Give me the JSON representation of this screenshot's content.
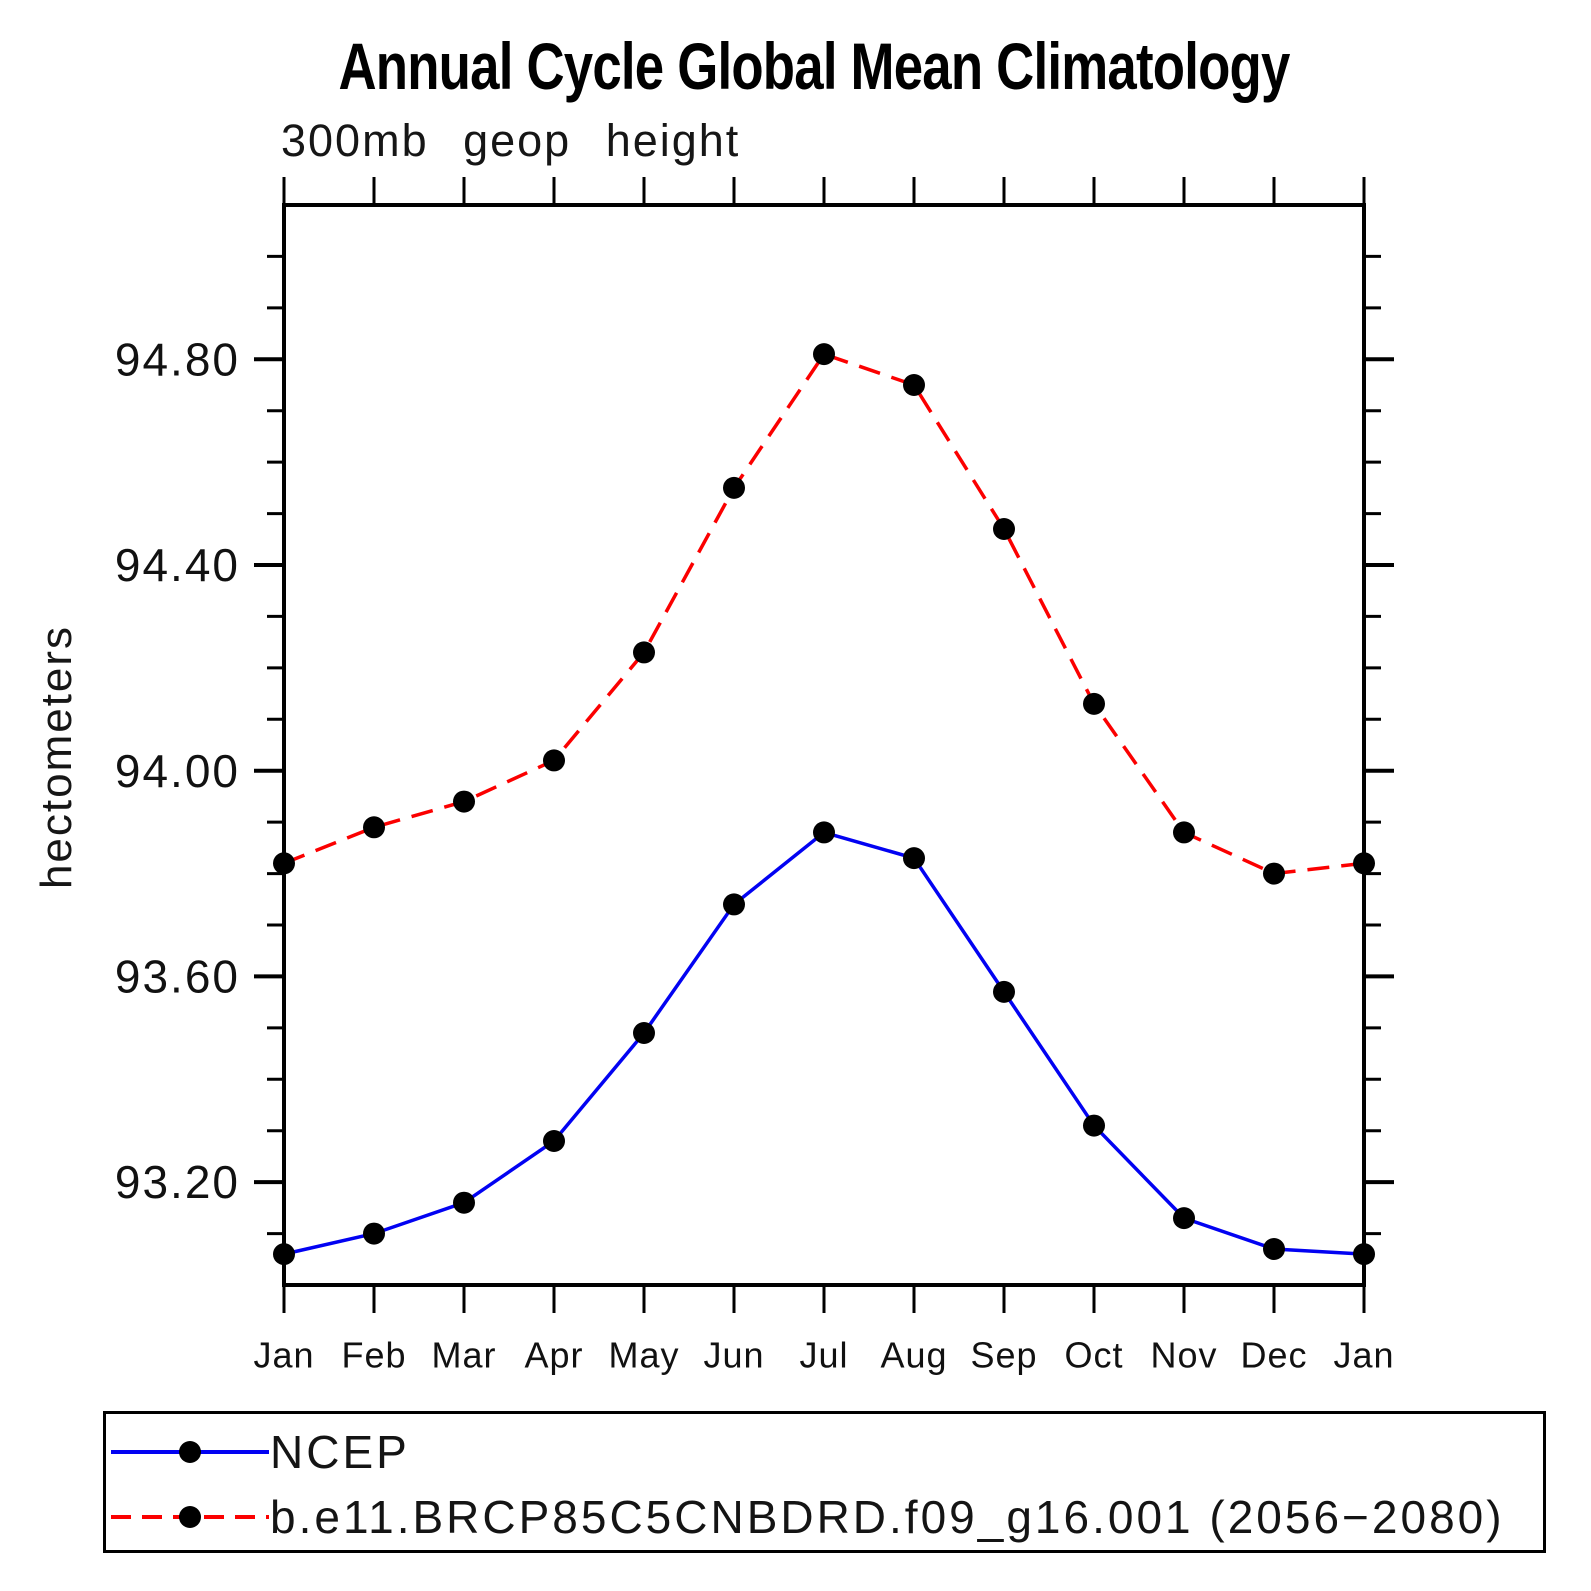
{
  "page": {
    "background": "#ffffff"
  },
  "header": {
    "title": "Annual Cycle Global Mean Climatology",
    "subtitle": "300mb geop height"
  },
  "chart_data": {
    "type": "line",
    "title": "Annual Cycle Global Mean Climatology",
    "subtitle": "300mb geop height",
    "xlabel": "",
    "ylabel": "hectometers",
    "x_categories": [
      "Jan",
      "Feb",
      "Mar",
      "Apr",
      "May",
      "Jun",
      "Jul",
      "Aug",
      "Sep",
      "Oct",
      "Nov",
      "Dec",
      "Jan"
    ],
    "ylim": [
      93.0,
      95.1
    ],
    "y_major_ticks": [
      93.2,
      93.6,
      94.0,
      94.4,
      94.8
    ],
    "y_major_tick_labels": [
      "93.20",
      "93.60",
      "94.00",
      "94.40",
      "94.80"
    ],
    "y_minor_tick_step": 0.1,
    "grid": false,
    "axis_color": "#000000",
    "marker_color": "#000000",
    "legend_position": "bottom-left-box",
    "series": [
      {
        "name": "NCEP",
        "color": "#0202f2",
        "line_style": "solid",
        "marker": "filled-circle",
        "values": [
          93.06,
          93.1,
          93.16,
          93.28,
          93.49,
          93.74,
          93.88,
          93.83,
          93.57,
          93.31,
          93.13,
          93.07,
          93.06
        ]
      },
      {
        "name": "b.e11.BRCP85C5CNBDRD.f09_g16.001 (2056−2080)",
        "color": "#fb0000",
        "line_style": "dashed",
        "marker": "filled-circle",
        "values": [
          93.82,
          93.89,
          93.94,
          94.02,
          94.23,
          94.55,
          94.81,
          94.75,
          94.47,
          94.13,
          93.88,
          93.8,
          93.82
        ]
      }
    ]
  }
}
